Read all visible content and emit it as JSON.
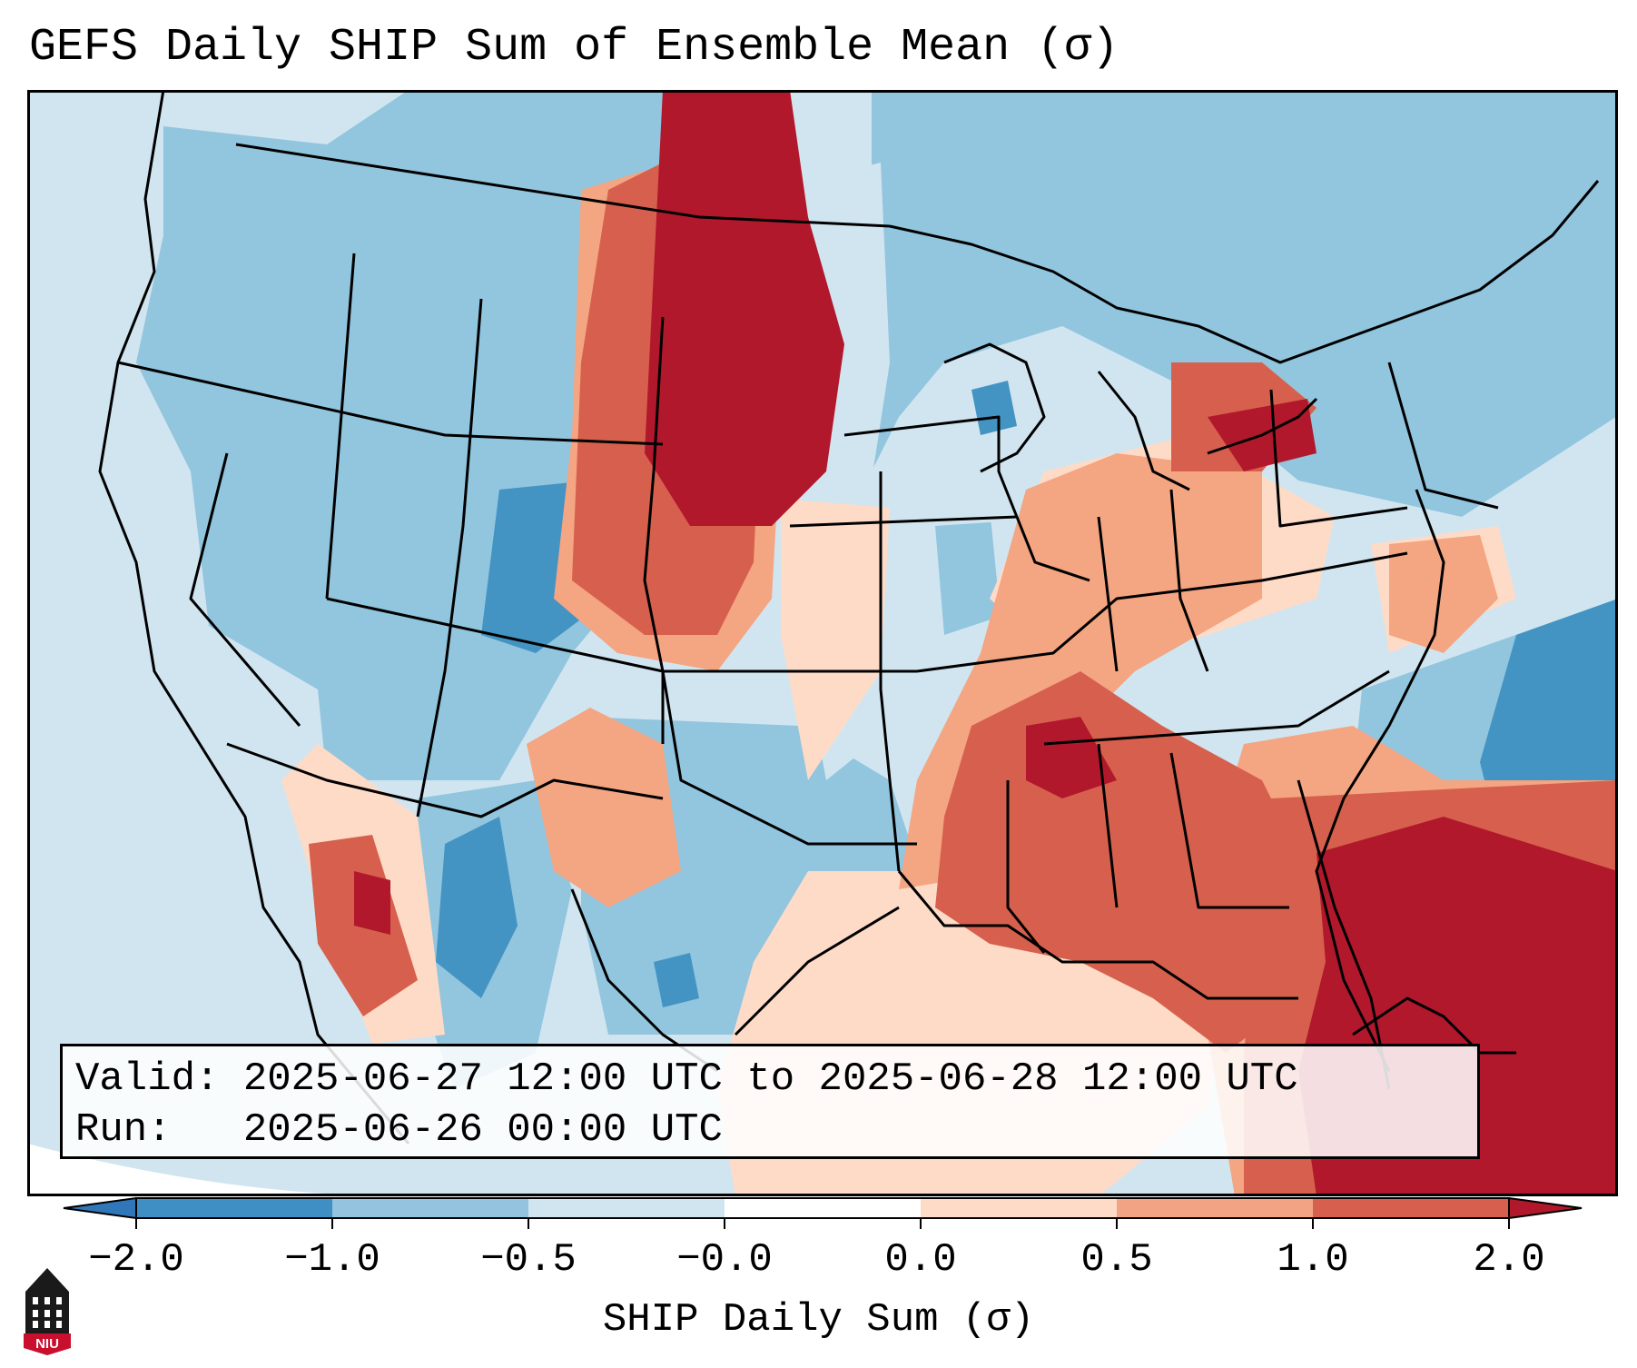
{
  "title": "GEFS Daily SHIP Sum of Ensemble Mean (σ)",
  "info": {
    "valid": "Valid: 2025-06-27 12:00 UTC to 2025-06-28 12:00 UTC",
    "run": "Run:   2025-06-26 00:00 UTC"
  },
  "colorbar": {
    "label": "SHIP Daily Sum (σ)",
    "ticks": [
      "−2.0",
      "−1.0",
      "−0.5",
      "−0.0",
      "0.0",
      "0.5",
      "1.0",
      "2.0"
    ],
    "colors": [
      "#3f8fc5",
      "#93c3df",
      "#d1e5f0",
      "#ffffff",
      "#fddbc7",
      "#f2a384",
      "#d6604d",
      "#b2182b"
    ],
    "extend_low": "#2f77b8",
    "extend_high": "#b2182b"
  },
  "palette": {
    "ocean_bg": "#d1e5f0",
    "dark_blue": "#4393c3",
    "mid_blue": "#92c5de",
    "light_blue": "#d1e5f0",
    "light_red": "#fddbc7",
    "salmon": "#f4a582",
    "red": "#d6604d",
    "dark_red": "#b2182b",
    "border": "#000000"
  },
  "logo": {
    "text": "NIU",
    "colors": {
      "shield": "#c8102e",
      "tower": "#1a1a1a"
    }
  }
}
